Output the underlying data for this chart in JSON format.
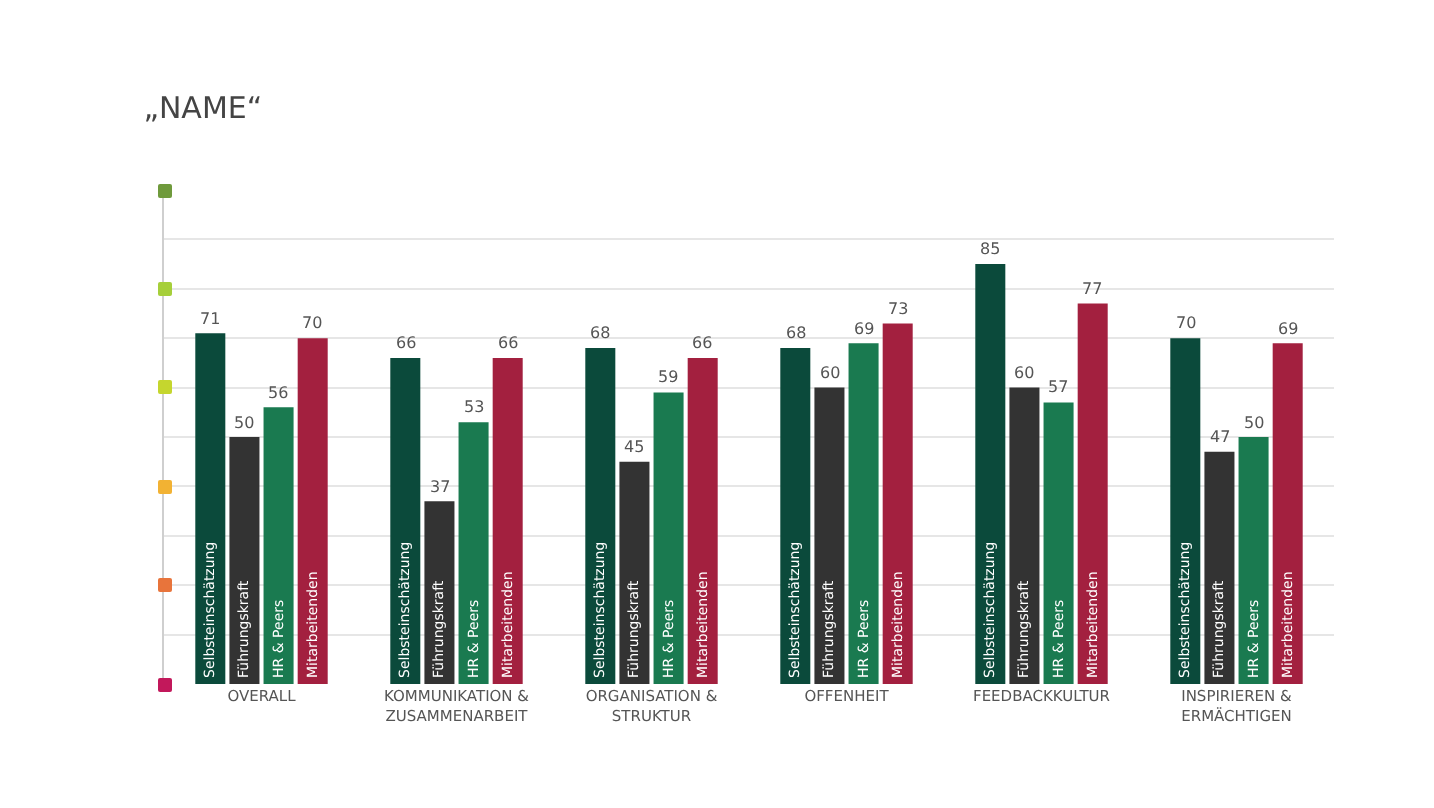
{
  "chart_data": {
    "type": "bar",
    "title": "„NAME“",
    "categories": [
      "OVERALL",
      "KOMMUNIKATION & ZUSAMMENARBEIT",
      "ORGANISATION & STRUKTUR",
      "OFFENHEIT",
      "FEEDBACKKULTUR",
      "INSPIRIEREN & ERMÄCHTIGEN"
    ],
    "series": [
      {
        "name": "Selbsteinschätzung",
        "color": "#0b4a3b",
        "values": [
          71,
          66,
          68,
          68,
          85,
          70
        ]
      },
      {
        "name": "Führungskraft",
        "color": "#333333",
        "values": [
          50,
          37,
          45,
          60,
          60,
          47
        ]
      },
      {
        "name": "HR & Peers",
        "color": "#1a7a50",
        "values": [
          56,
          53,
          59,
          69,
          57,
          50
        ]
      },
      {
        "name": "Mitarbeitenden",
        "color": "#a3203f",
        "values": [
          70,
          66,
          66,
          73,
          77,
          69
        ]
      }
    ],
    "ylim": [
      0,
      100
    ],
    "grid": "y",
    "tick_labels": "x",
    "data_labels": true,
    "legend": false
  }
}
